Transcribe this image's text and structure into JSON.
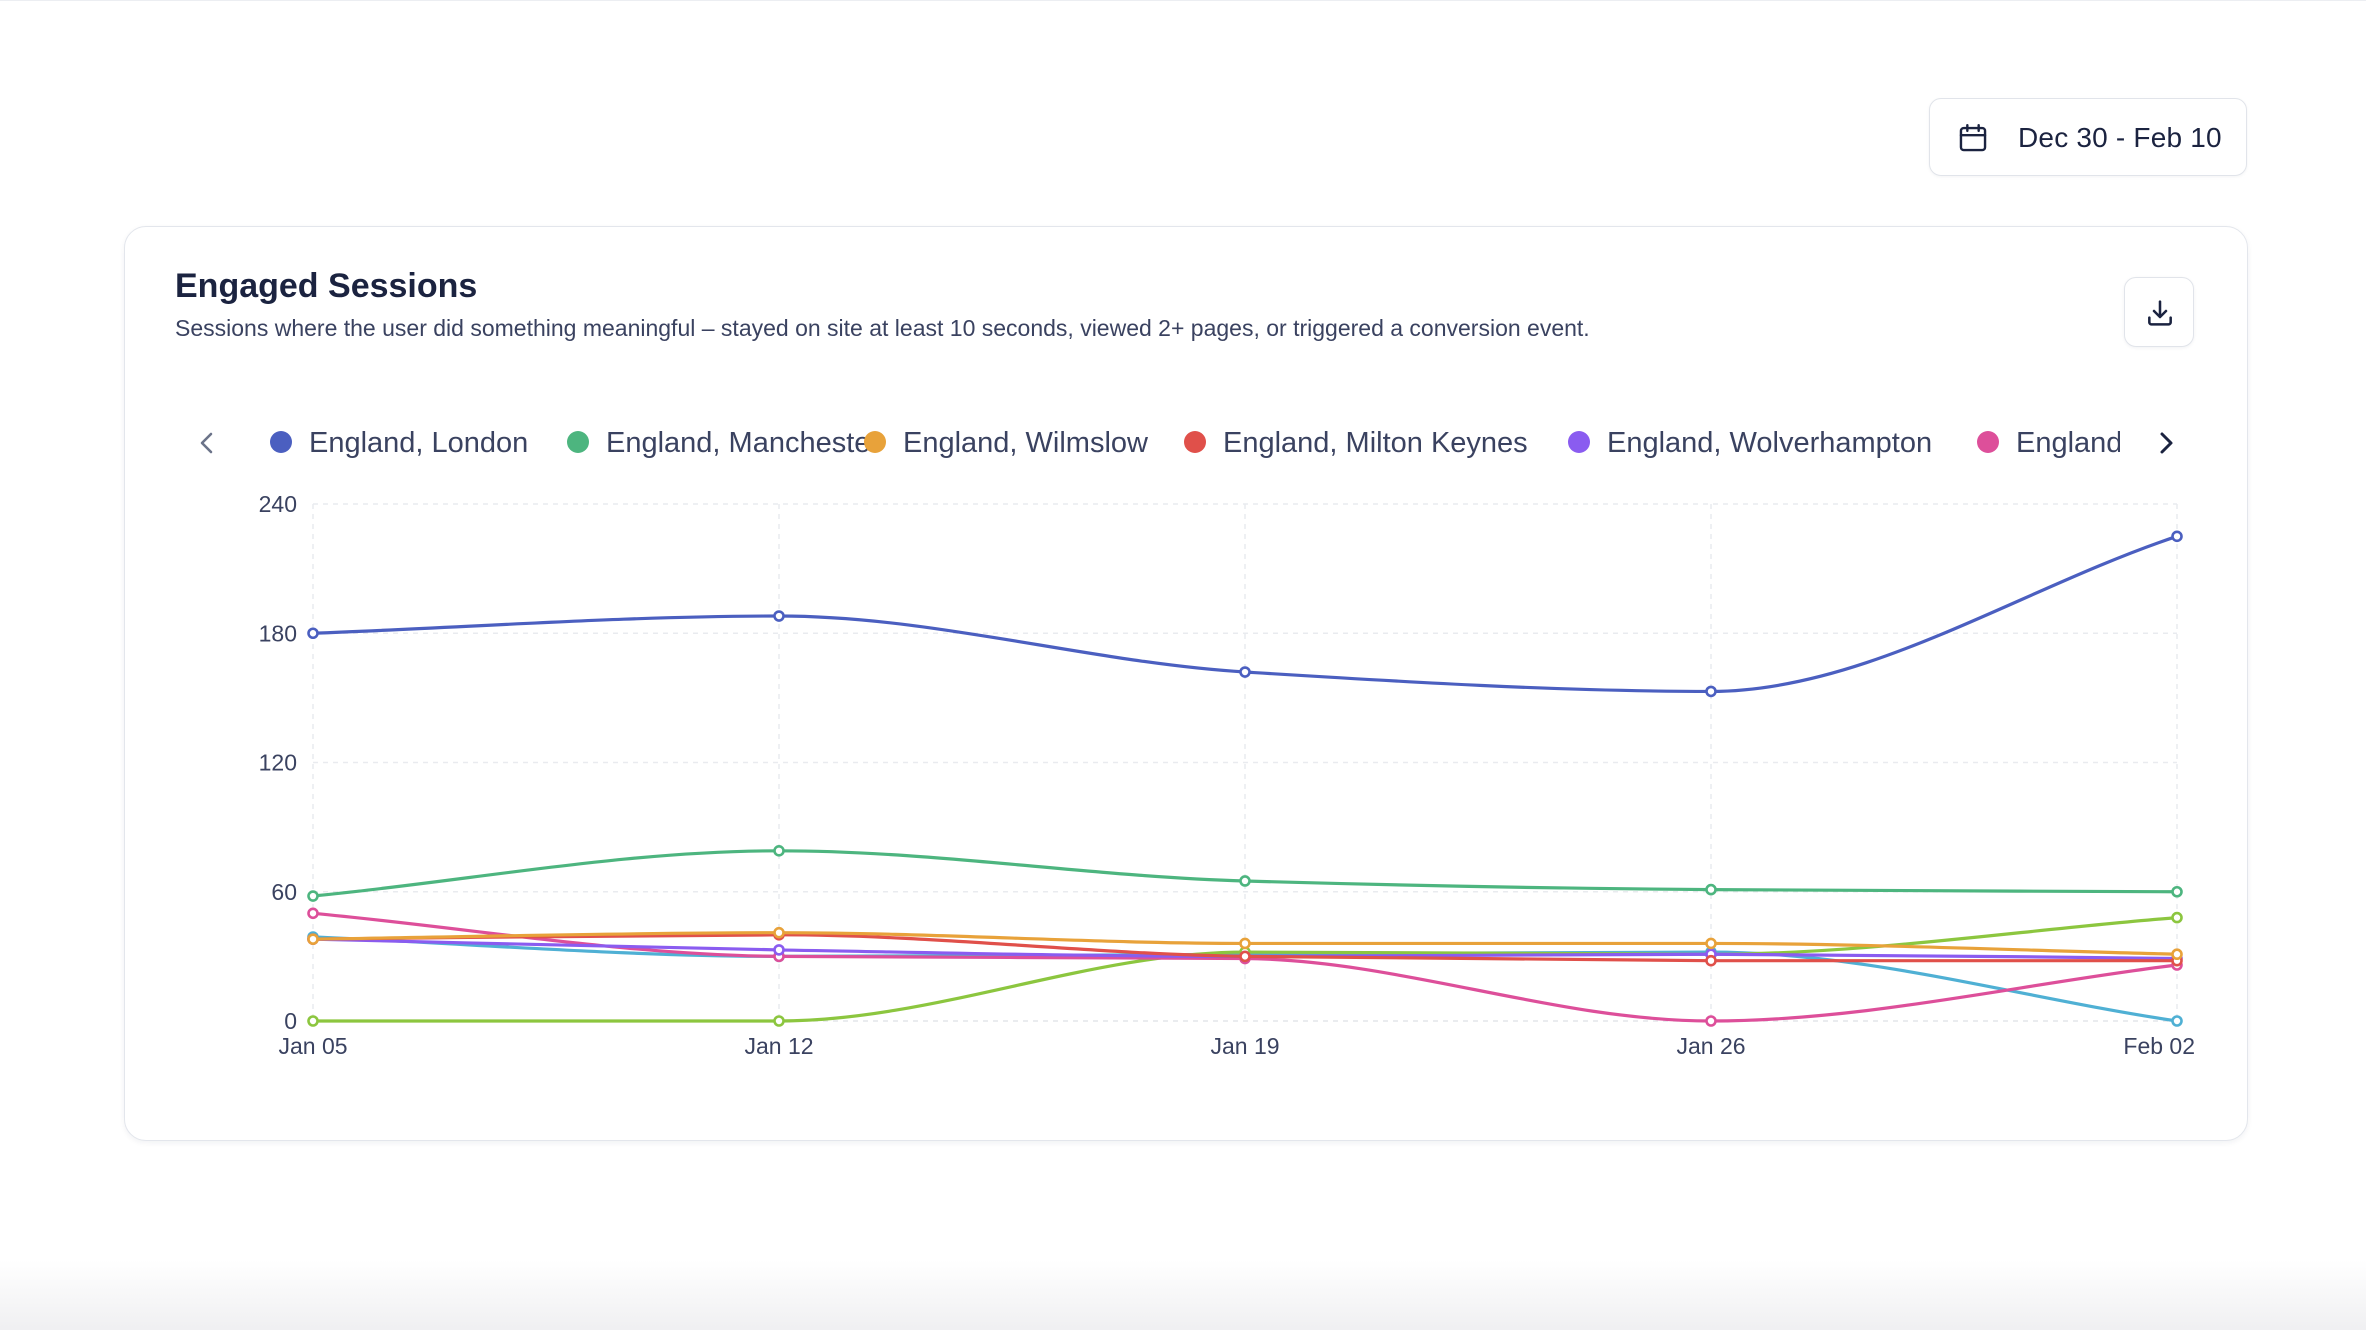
{
  "date_range": {
    "label": "Dec 30 - Feb 10",
    "icon": "calendar-icon"
  },
  "card": {
    "title": "Engaged Sessions",
    "subtitle": "Sessions where the user did something meaningful – stayed on site at least 10 seconds, viewed 2+ pages, or triggered a conversion event.",
    "download_icon": "download-icon"
  },
  "legend": {
    "prev_icon": "chevron-left-icon",
    "next_icon": "chevron-right-icon",
    "items": [
      {
        "label": "England, London",
        "color": "#4b5fc0"
      },
      {
        "label": "England, Manchester",
        "color": "#4db57f"
      },
      {
        "label": "England, Wilmslow",
        "color": "#e8a23a"
      },
      {
        "label": "England, Milton Keynes",
        "color": "#e0504a"
      },
      {
        "label": "England, Wolverhampton",
        "color": "#8a5cf0"
      },
      {
        "label": "England",
        "color": "#dd4f9a"
      }
    ]
  },
  "chart_data": {
    "type": "line",
    "title": "Engaged Sessions",
    "x": [
      "Jan 05",
      "Jan 12",
      "Jan 19",
      "Jan 26",
      "Feb 02"
    ],
    "ylim": [
      0,
      240
    ],
    "yticks": [
      0,
      60,
      120,
      180,
      240
    ],
    "grid": true,
    "legend_position": "top",
    "series": [
      {
        "name": "England, London",
        "color": "#4b5fc0",
        "values": [
          180,
          188,
          162,
          153,
          225
        ]
      },
      {
        "name": "England, Manchester",
        "color": "#4db57f",
        "values": [
          58,
          79,
          65,
          61,
          60
        ]
      },
      {
        "name": "England, Wilmslow",
        "color": "#e8a23a",
        "values": [
          38,
          41,
          36,
          36,
          31
        ]
      },
      {
        "name": "England, Milton Keynes",
        "color": "#e0504a",
        "values": [
          38,
          40,
          30,
          28,
          28
        ]
      },
      {
        "color": "#8a5cf0",
        "values": [
          38,
          33,
          30,
          31,
          29
        ]
      },
      {
        "color": "#dd4f9a",
        "values": [
          50,
          30,
          29,
          0,
          26
        ]
      },
      {
        "color": "#8cc63f",
        "values": [
          0,
          0,
          32,
          31,
          48
        ]
      },
      {
        "color": "#4fb0d4",
        "values": [
          39,
          30,
          31,
          32,
          0
        ]
      }
    ]
  }
}
